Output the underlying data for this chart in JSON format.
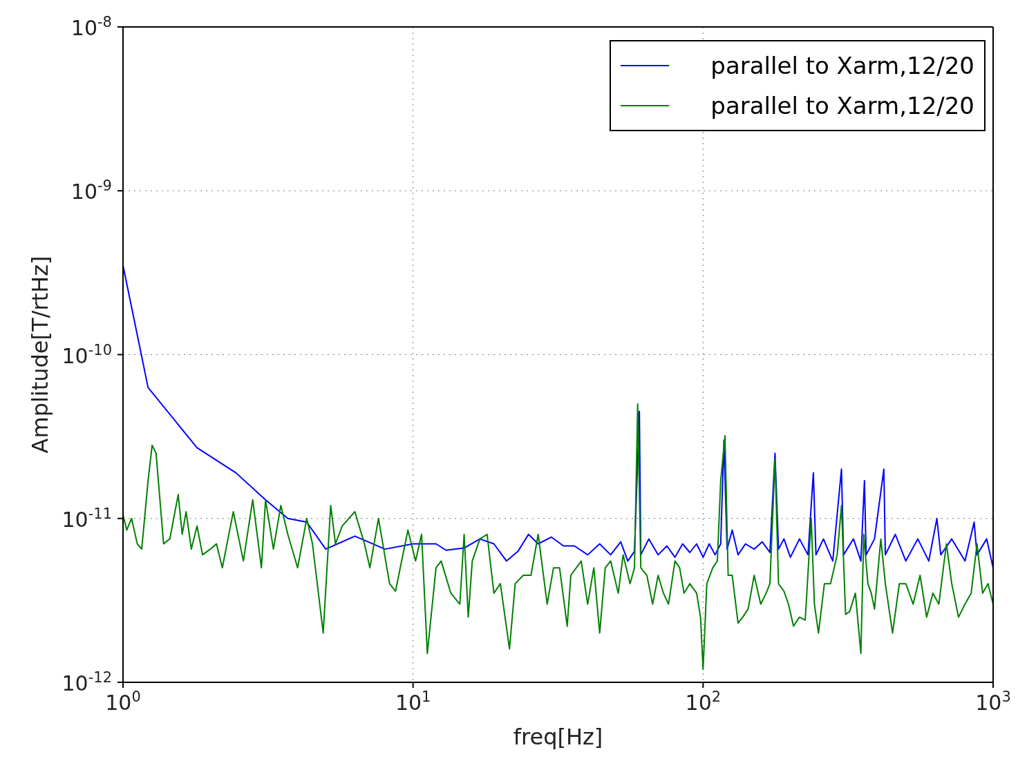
{
  "chart_data": {
    "type": "line",
    "xlabel": "freq[Hz]",
    "ylabel": "Amplitude[T/rtHz]",
    "log": "xy",
    "grid": true,
    "legend": "top right",
    "xlim": [
      1,
      1000
    ],
    "ylim": [
      1e-12,
      1e-08
    ],
    "xticks": [
      {
        "value": 1,
        "label": "10$^{0}$"
      },
      {
        "value": 10,
        "label": "10$^{1}$"
      },
      {
        "value": 100,
        "label": "10$^{2}$"
      },
      {
        "value": 1000,
        "label": "10$^{3}$"
      }
    ],
    "yticks": [
      {
        "value": 1e-12,
        "label": "10$^{-12}$"
      },
      {
        "value": 1e-11,
        "label": "10$^{-11}$"
      },
      {
        "value": 1e-10,
        "label": "10$^{-10}$"
      },
      {
        "value": 1e-09,
        "label": "10$^{-9}$"
      },
      {
        "value": 1e-08,
        "label": "10$^{-8}$"
      }
    ],
    "series": [
      {
        "name": "parallel to Xarm,12/20",
        "color": "#0000ff",
        "x": [
          1,
          1.22,
          1.8,
          2.45,
          3.1,
          3.7,
          4.3,
          5,
          6.3,
          7,
          8,
          10,
          12,
          13,
          15,
          17,
          19,
          21,
          23,
          25,
          27,
          30,
          33,
          36,
          40,
          44,
          48,
          52,
          55,
          58,
          60.3,
          61,
          65,
          70,
          75,
          80,
          85,
          90,
          95,
          100,
          105,
          110,
          115,
          118,
          121,
          126,
          132,
          140,
          150,
          160,
          170,
          177,
          182,
          190,
          200,
          215,
          230,
          240,
          245,
          260,
          280,
          300,
          305,
          330,
          350,
          360,
          365,
          390,
          420,
          425,
          460,
          500,
          550,
          600,
          640,
          660,
          720,
          800,
          860,
          880,
          950,
          1000
        ],
        "values": [
          3.5e-10,
          6.3e-11,
          2.7e-11,
          1.9e-11,
          1.3e-11,
          1e-11,
          9.5e-12,
          6.5e-12,
          7.8e-12,
          7.2e-12,
          6.5e-12,
          7e-12,
          7e-12,
          6.4e-12,
          6.6e-12,
          7.5e-12,
          7e-12,
          5.5e-12,
          6.3e-12,
          8e-12,
          7e-12,
          7.7e-12,
          6.8e-12,
          6.8e-12,
          6e-12,
          7e-12,
          6e-12,
          7.2e-12,
          5.5e-12,
          6.3e-12,
          4.5e-11,
          6e-12,
          7.5e-12,
          6e-12,
          6.8e-12,
          5.8e-12,
          7e-12,
          6.2e-12,
          7e-12,
          5.8e-12,
          7e-12,
          6e-12,
          7e-12,
          3e-11,
          6.5e-12,
          8.5e-12,
          6e-12,
          7e-12,
          6.5e-12,
          7.2e-12,
          6.2e-12,
          2.5e-11,
          6.5e-12,
          7.5e-12,
          5.8e-12,
          7.5e-12,
          6e-12,
          1.9e-11,
          6e-12,
          7.5e-12,
          5.5e-12,
          2e-11,
          6e-12,
          7.5e-12,
          5.5e-12,
          1.7e-11,
          6e-12,
          7.5e-12,
          2e-11,
          6e-12,
          8e-12,
          5.5e-12,
          7.5e-12,
          5.5e-12,
          1e-11,
          6e-12,
          7.5e-12,
          5.5e-12,
          9.5e-12,
          6e-12,
          7.5e-12,
          5e-12
        ]
      },
      {
        "name": "parallel to Xarm,12/20",
        "color": "#008000",
        "x": [
          1,
          1.03,
          1.07,
          1.12,
          1.16,
          1.22,
          1.26,
          1.3,
          1.38,
          1.45,
          1.55,
          1.6,
          1.65,
          1.72,
          1.8,
          1.88,
          2,
          2.1,
          2.2,
          2.4,
          2.6,
          2.8,
          3,
          3.1,
          3.3,
          3.5,
          3.7,
          4,
          4.3,
          4.5,
          4.9,
          5.2,
          5.4,
          5.7,
          6.3,
          6.8,
          7.1,
          7.6,
          8.3,
          8.7,
          9.6,
          10.2,
          10.7,
          11.2,
          12,
          12.5,
          13.5,
          14.5,
          15,
          15.5,
          16,
          17,
          18,
          19,
          20,
          21.5,
          22.5,
          24,
          25.5,
          27,
          29,
          30.5,
          32,
          34,
          35,
          38,
          40,
          42,
          44,
          46,
          48,
          51,
          53,
          56,
          58,
          59.5,
          61,
          64,
          67,
          70,
          73,
          76,
          80,
          83,
          86,
          90,
          95,
          98,
          100,
          103,
          108,
          112,
          115,
          119,
          122,
          126,
          132,
          137,
          143,
          150,
          158,
          165,
          170,
          177,
          182,
          190,
          197,
          205,
          215,
          225,
          236,
          242,
          250,
          262,
          275,
          290,
          300,
          310,
          320,
          335,
          350,
          358,
          370,
          380,
          390,
          410,
          425,
          450,
          475,
          500,
          530,
          560,
          590,
          620,
          650,
          690,
          720,
          760,
          800,
          840,
          880,
          920,
          960,
          1000
        ],
        "values": [
          1.05e-11,
          8.5e-12,
          1e-11,
          7e-12,
          6.5e-12,
          1.7e-11,
          2.8e-11,
          2.5e-11,
          7e-12,
          7.5e-12,
          1.4e-11,
          8e-12,
          1.1e-11,
          6.5e-12,
          9e-12,
          6e-12,
          6.5e-12,
          7e-12,
          5e-12,
          1.1e-11,
          5.5e-12,
          1.3e-11,
          5e-12,
          1.3e-11,
          6.5e-12,
          1.2e-11,
          8e-12,
          5e-12,
          1e-11,
          7e-12,
          2e-12,
          1.2e-11,
          7e-12,
          9e-12,
          1.1e-11,
          7e-12,
          5e-12,
          1e-11,
          4e-12,
          3.6e-12,
          8.5e-12,
          5.5e-12,
          8e-12,
          1.5e-12,
          5e-12,
          5.5e-12,
          3.5e-12,
          3e-12,
          8e-12,
          2.5e-12,
          5.5e-12,
          7.5e-12,
          8e-12,
          3.5e-12,
          4e-12,
          1.6e-12,
          4e-12,
          4.5e-12,
          4.5e-12,
          8e-12,
          3e-12,
          5e-12,
          5e-12,
          2.2e-12,
          4.5e-12,
          5.5e-12,
          3e-12,
          5e-12,
          2e-12,
          5e-12,
          5.5e-12,
          3.5e-12,
          6e-12,
          4e-12,
          5e-12,
          5e-11,
          5e-12,
          4.5e-12,
          3e-12,
          4.5e-12,
          3.5e-12,
          3e-12,
          5.5e-12,
          5e-12,
          3.5e-12,
          4e-12,
          3.5e-12,
          2.5e-12,
          1.2e-12,
          4e-12,
          5e-12,
          5.5e-12,
          1.7e-11,
          3.2e-11,
          4.5e-12,
          4.5e-12,
          2.3e-12,
          2.5e-12,
          2.8e-12,
          4.5e-12,
          3e-12,
          3.5e-12,
          4e-12,
          2.3e-11,
          4e-12,
          3.6e-12,
          3e-12,
          2.2e-12,
          2.5e-12,
          2.4e-12,
          1e-11,
          3e-12,
          2e-12,
          4e-12,
          4e-12,
          6e-12,
          1.2e-11,
          2.6e-12,
          2.7e-12,
          3.5e-12,
          1.5e-12,
          8e-12,
          4e-12,
          3.5e-12,
          2.8e-12,
          7.5e-12,
          4e-12,
          2e-12,
          4e-12,
          4e-12,
          3e-12,
          4.5e-12,
          2.5e-12,
          3.5e-12,
          3e-12,
          7e-12,
          4e-12,
          2.5e-12,
          3e-12,
          3.5e-12,
          7e-12,
          3.5e-12,
          4e-12,
          3e-12
        ]
      }
    ]
  }
}
